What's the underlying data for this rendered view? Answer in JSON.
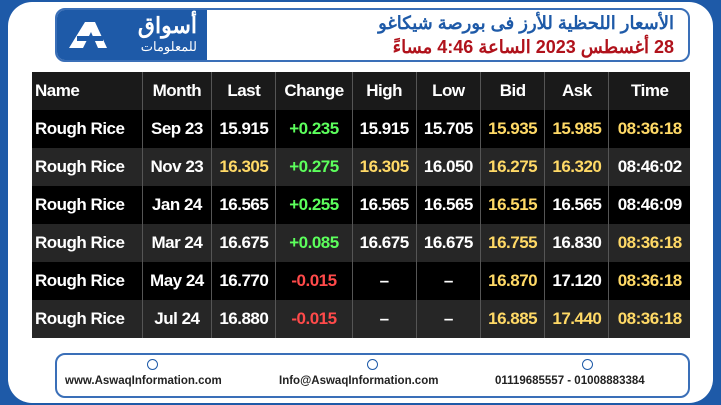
{
  "header": {
    "logo": {
      "name": "أسواق",
      "subtitle": "للمعلومات"
    },
    "title": "الأسعار اللحظية للأرز فى بورصة شيكاغو",
    "subtitle": "28 أغسطس 2023 الساعة 4:46 مساءً"
  },
  "table": {
    "columns": [
      "Name",
      "Month",
      "Last",
      "Change",
      "High",
      "Low",
      "Bid",
      "Ask",
      "Time"
    ],
    "rows": [
      [
        "Rough Rice",
        "Sep 23",
        "15.915",
        "+0.235",
        "15.915",
        "15.705",
        "15.935",
        "15.985",
        "08:36:18"
      ],
      [
        "Rough Rice",
        "Nov 23",
        "16.305",
        "+0.275",
        "16.305",
        "16.050",
        "16.275",
        "16.320",
        "08:46:02"
      ],
      [
        "Rough Rice",
        "Jan 24",
        "16.565",
        "+0.255",
        "16.565",
        "16.565",
        "16.515",
        "16.565",
        "08:46:09"
      ],
      [
        "Rough Rice",
        "Mar 24",
        "16.675",
        "+0.085",
        "16.675",
        "16.675",
        "16.755",
        "16.830",
        "08:36:18"
      ],
      [
        "Rough Rice",
        "May 24",
        "16.770",
        "-0.015",
        "–",
        "–",
        "16.870",
        "17.120",
        "08:36:18"
      ],
      [
        "Rough Rice",
        "Jul 24",
        "16.880",
        "-0.015",
        "–",
        "–",
        "16.885",
        "17.440",
        "08:36:18"
      ]
    ]
  },
  "footer": {
    "website": "www.AswaqInformation.com",
    "email": "Info@AswaqInformation.com",
    "phone": "01119685557 - 01008883384"
  }
}
